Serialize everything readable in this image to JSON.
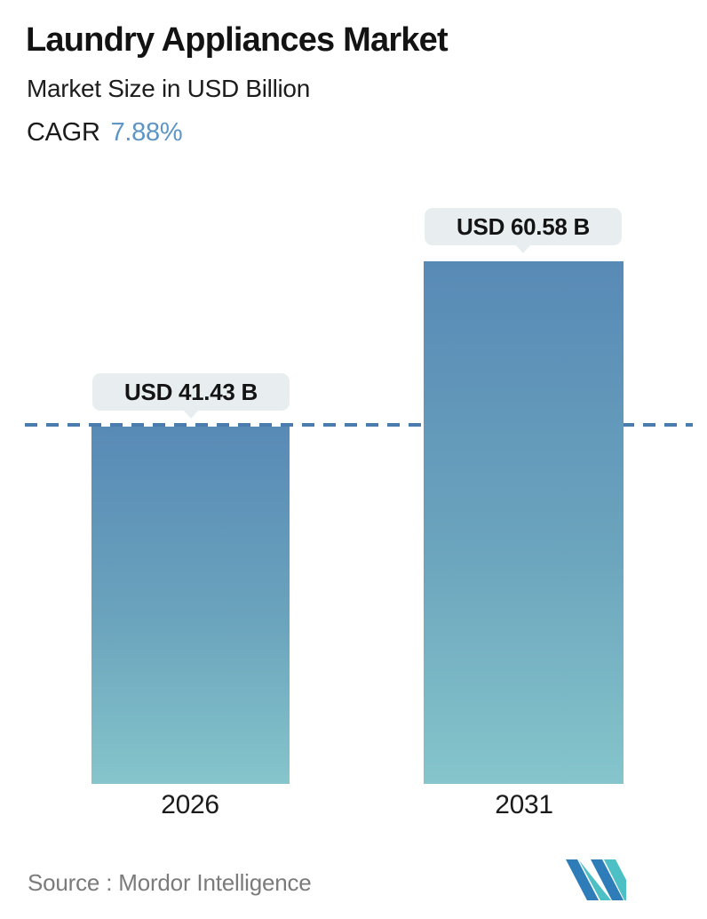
{
  "header": {
    "title": "Laundry Appliances Market",
    "subtitle": "Market Size in USD Billion",
    "cagr_label": "CAGR",
    "cagr_value": "7.88%"
  },
  "chart_data": {
    "type": "bar",
    "categories": [
      "2026",
      "2031"
    ],
    "values": [
      41.43,
      60.58
    ],
    "series": [
      {
        "name": "Market Size",
        "values": [
          41.43,
          60.58
        ]
      }
    ],
    "bar_labels": [
      "USD 41.43 B",
      "USD 60.58 B"
    ],
    "title": "Laundry Appliances Market",
    "xlabel": "",
    "ylabel": "Market Size in USD Billion",
    "ylim": [
      0,
      62
    ],
    "grid": "off",
    "legend": "none",
    "reference_line": {
      "value": 41.43,
      "style": "dashed",
      "color": "#4a7dad"
    },
    "bar_gradient": {
      "top": "#588ab6",
      "bottom": "#85c5cb"
    }
  },
  "footer": {
    "source": "Source :  Mordor Intelligence",
    "logo_name": "mordor-intelligence-logo"
  },
  "colors": {
    "cagr_accent": "#5d95c5",
    "bubble_background": "#e8eef0",
    "dashed_line": "#4a7dad",
    "source_text": "#7b7b7b",
    "logo_blue": "#2e7db8",
    "logo_teal": "#4cc0c5"
  }
}
